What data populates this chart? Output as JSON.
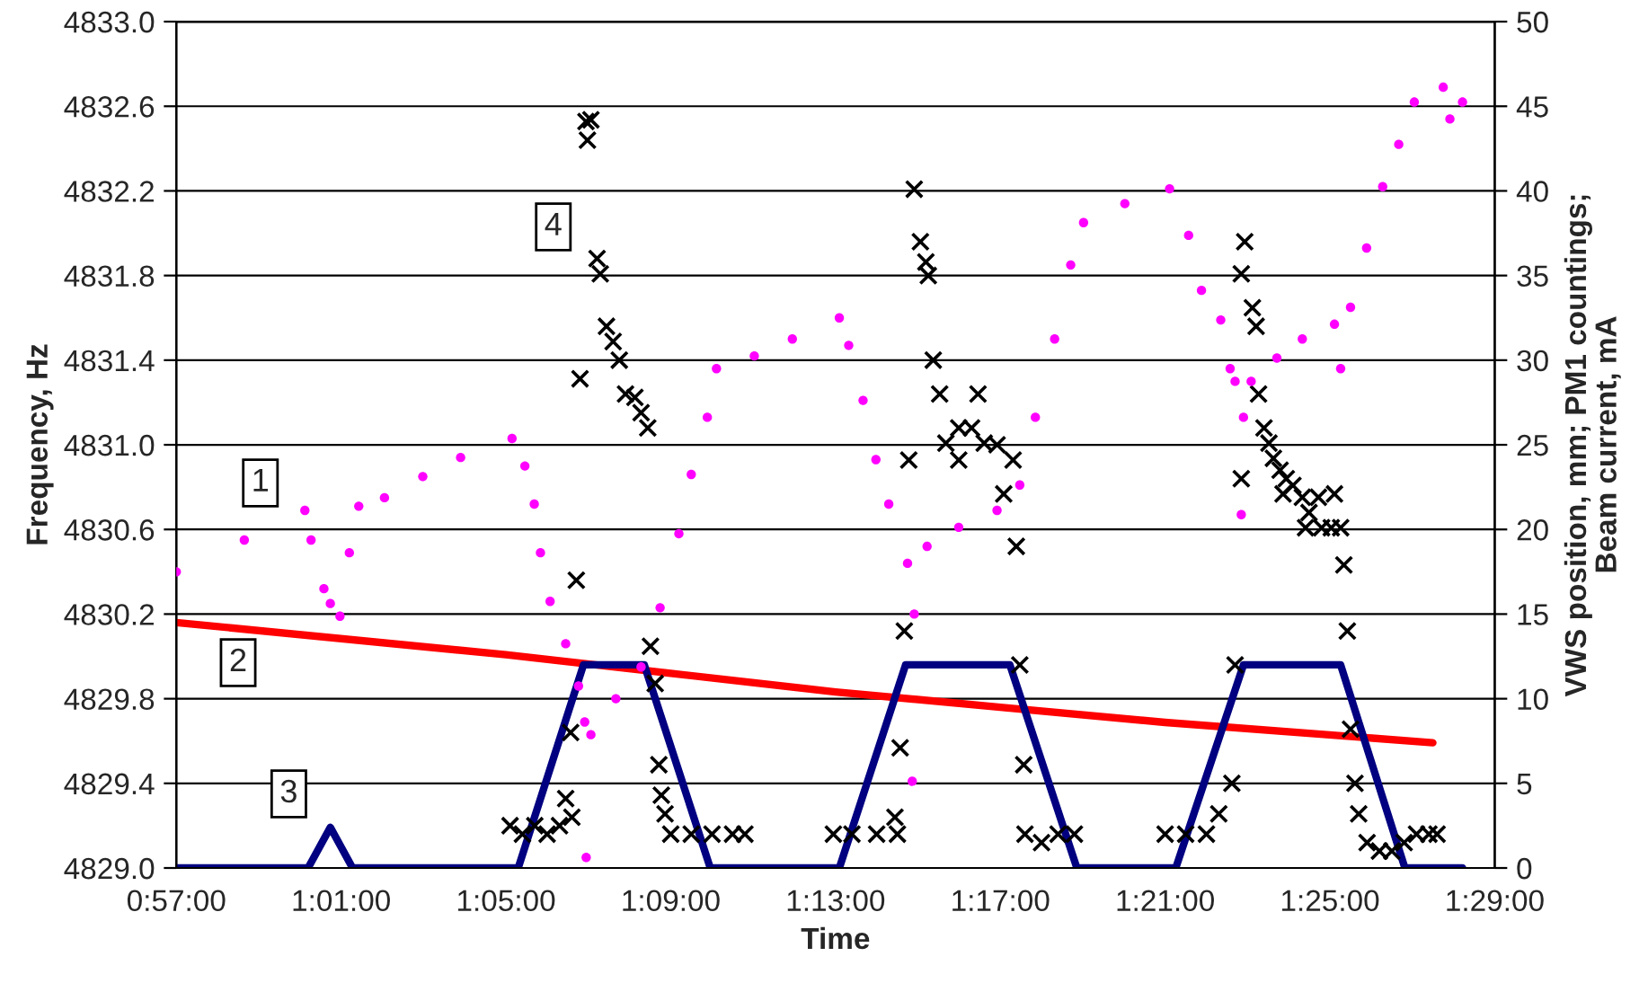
{
  "chart_data": {
    "type": "scatter",
    "xlabel": "Time",
    "ylabel": "Frequency, Hz",
    "y2label": "VWS position, mm; PM1 countings;\nBeam current, mA",
    "xlim": [
      0.95,
      1.4833333
    ],
    "ylim": [
      4829.0,
      4833.0
    ],
    "y2lim": [
      0,
      50
    ],
    "xticks": [
      {
        "value": 0.95,
        "label": "0:57:00"
      },
      {
        "value": 1.0166667,
        "label": "1:01:00"
      },
      {
        "value": 1.0833333,
        "label": "1:05:00"
      },
      {
        "value": 1.15,
        "label": "1:09:00"
      },
      {
        "value": 1.2166667,
        "label": "1:13:00"
      },
      {
        "value": 1.2833333,
        "label": "1:17:00"
      },
      {
        "value": 1.35,
        "label": "1:21:00"
      },
      {
        "value": 1.4166667,
        "label": "1:25:00"
      },
      {
        "value": 1.4833333,
        "label": "1:29:00"
      }
    ],
    "yticks": [
      {
        "value": 4829.0,
        "label": "4829.0"
      },
      {
        "value": 4829.4,
        "label": "4829.4"
      },
      {
        "value": 4829.8,
        "label": "4829.8"
      },
      {
        "value": 4830.2,
        "label": "4830.2"
      },
      {
        "value": 4830.6,
        "label": "4830.6"
      },
      {
        "value": 4831.0,
        "label": "4831.0"
      },
      {
        "value": 4831.4,
        "label": "4831.4"
      },
      {
        "value": 4831.8,
        "label": "4831.8"
      },
      {
        "value": 4832.2,
        "label": "4832.2"
      },
      {
        "value": 4832.6,
        "label": "4832.6"
      },
      {
        "value": 4833.0,
        "label": "4833.0"
      }
    ],
    "y2ticks": [
      0,
      5,
      10,
      15,
      20,
      25,
      30,
      35,
      40,
      45,
      50
    ],
    "grid": true,
    "legend": false,
    "annotations": [
      {
        "text": "1",
        "x": 0.984,
        "y": 4830.82
      },
      {
        "text": "2",
        "x": 0.975,
        "y": 4829.97
      },
      {
        "text": "3",
        "x": 0.9955,
        "y": 4829.35
      },
      {
        "text": "4",
        "x": 1.1025,
        "y": 4832.03
      }
    ],
    "series": [
      {
        "marker": "circle",
        "color": "#ff00ff",
        "x": [
          0.95,
          0.9775,
          1.002,
          1.0045,
          1.0097,
          1.0123,
          1.0162,
          1.02,
          1.0238,
          1.0342,
          1.0497,
          1.065,
          1.0858,
          1.091,
          1.0948,
          1.0973,
          1.1012,
          1.1075,
          1.1127,
          1.1152,
          1.1158,
          1.1177,
          1.1278,
          1.138,
          1.1457,
          1.1533,
          1.1583,
          1.1648,
          1.1685,
          1.1838,
          1.1992,
          1.2182,
          1.222,
          1.2278,
          1.233,
          1.2382,
          1.2458,
          1.2477,
          1.2485,
          1.2537,
          1.2665,
          1.282,
          1.2912,
          1.2975,
          1.3053,
          1.3118,
          1.317,
          1.3337,
          1.3518,
          1.3595,
          1.3647,
          1.3725,
          1.3763,
          1.3783,
          1.3808,
          1.3817,
          1.3848,
          1.3952,
          1.4055,
          1.4185,
          1.421,
          1.425,
          1.4315,
          1.438,
          1.4445,
          1.4508,
          1.4625,
          1.4652,
          1.4703
        ],
        "values": [
          4830.4,
          4830.55,
          4830.69,
          4830.55,
          4830.32,
          4830.25,
          4830.19,
          4830.49,
          4830.71,
          4830.75,
          4830.85,
          4830.94,
          4831.03,
          4830.9,
          4830.72,
          4830.49,
          4830.26,
          4830.06,
          4829.86,
          4829.69,
          4829.05,
          4829.63,
          4829.8,
          4829.95,
          4830.23,
          4830.58,
          4830.86,
          4831.13,
          4831.36,
          4831.42,
          4831.5,
          4831.6,
          4831.47,
          4831.21,
          4830.93,
          4830.72,
          4830.44,
          4829.41,
          4830.2,
          4830.52,
          4830.61,
          4830.69,
          4830.81,
          4831.13,
          4831.5,
          4831.85,
          4832.05,
          4832.14,
          4832.21,
          4831.99,
          4831.73,
          4831.59,
          4831.36,
          4831.3,
          4830.67,
          4831.13,
          4831.3,
          4831.41,
          4831.5,
          4831.57,
          4831.36,
          4831.65,
          4831.93,
          4832.22,
          4832.42,
          4832.62,
          4832.69,
          4832.54,
          4832.62
        ]
      },
      {
        "type": "line",
        "axis": "y2",
        "marker": "none",
        "line_style": "solid",
        "color": "#ff0000",
        "x": [
          0.95,
          1.0833,
          1.15,
          1.2167,
          1.2833,
          1.35,
          1.4583
        ],
        "values": [
          14.5,
          12.6,
          11.5,
          10.4,
          9.5,
          8.6,
          7.4
        ]
      },
      {
        "type": "line",
        "axis": "y2",
        "marker": "none",
        "line_style": "solid",
        "color": "#000080",
        "x": [
          0.95,
          1.0033,
          1.0123,
          1.0213,
          1.0883,
          1.1147,
          1.1393,
          1.166,
          1.2182,
          1.245,
          1.2872,
          1.3143,
          1.3543,
          1.3817,
          1.421,
          1.447,
          1.4703
        ],
        "values": [
          0,
          0,
          2.4,
          0,
          0,
          12,
          12,
          0,
          0,
          12,
          12,
          0,
          0,
          12,
          12,
          0,
          0
        ]
      },
      {
        "type": "scatter",
        "axis": "y2",
        "marker": "cross",
        "color": "#000000",
        "x": [
          1.085,
          1.09,
          1.095,
          1.1,
          1.105,
          1.1075,
          1.1095,
          1.11,
          1.1118,
          1.1133,
          1.1157,
          1.1163,
          1.1177,
          1.1202,
          1.1215,
          1.124,
          1.1267,
          1.1292,
          1.1317,
          1.1355,
          1.138,
          1.1407,
          1.1418,
          1.1437,
          1.1452,
          1.1462,
          1.1477,
          1.15,
          1.1583,
          1.1667,
          1.175,
          1.18,
          1.2158,
          1.2233,
          1.2333,
          1.2407,
          1.2417,
          1.2428,
          1.2445,
          1.2463,
          1.2485,
          1.251,
          1.2532,
          1.2542,
          1.2562,
          1.2588,
          1.2613,
          1.2665,
          1.2665,
          1.2717,
          1.2743,
          1.2768,
          1.282,
          1.2847,
          1.2885,
          1.2898,
          1.2912,
          1.2928,
          1.2933,
          1.3,
          1.3067,
          1.3133,
          1.35,
          1.3583,
          1.3667,
          1.3717,
          1.377,
          1.3783,
          1.3808,
          1.3808,
          1.3822,
          1.3853,
          1.3868,
          1.3878,
          1.39,
          1.392,
          1.3938,
          1.3965,
          1.3977,
          1.399,
          1.4017,
          1.4055,
          1.4068,
          1.4082,
          1.412,
          1.4133,
          1.4172,
          1.4185,
          1.421,
          1.4223,
          1.4237,
          1.425,
          1.4268,
          1.4283,
          1.4317,
          1.4367,
          1.4417,
          1.4467,
          1.4517,
          1.4567,
          1.46
        ],
        "values": [
          2.5,
          2,
          2.5,
          2,
          2.5,
          4.1,
          8.0,
          3,
          17.0,
          28.9,
          44.1,
          43.0,
          44.2,
          36.0,
          35.1,
          32.0,
          31.1,
          30.0,
          28.0,
          27.8,
          26.9,
          26.0,
          13.1,
          10.9,
          6.1,
          4.3,
          3.2,
          2,
          2,
          2,
          2,
          2,
          2,
          2,
          2,
          3.0,
          2,
          7.1,
          14.0,
          24.1,
          40.1,
          37.0,
          35.8,
          35.0,
          30.0,
          28.0,
          25.1,
          26.0,
          24.1,
          26.0,
          28.0,
          25.1,
          25.0,
          22.1,
          24.1,
          19.0,
          12.0,
          6.1,
          2,
          1.5,
          2,
          2,
          2,
          2,
          2,
          3.2,
          5.0,
          12.0,
          23.0,
          35.1,
          37.0,
          33.1,
          32.0,
          28.0,
          26.0,
          25.1,
          24.2,
          23.5,
          22.1,
          23.0,
          22.6,
          21.9,
          20.1,
          21.0,
          21.9,
          20.1,
          20.1,
          22.1,
          20.1,
          17.9,
          14.0,
          8.2,
          5.0,
          3.2,
          1.5,
          1,
          1,
          1.5,
          2,
          2,
          2
        ]
      }
    ]
  }
}
